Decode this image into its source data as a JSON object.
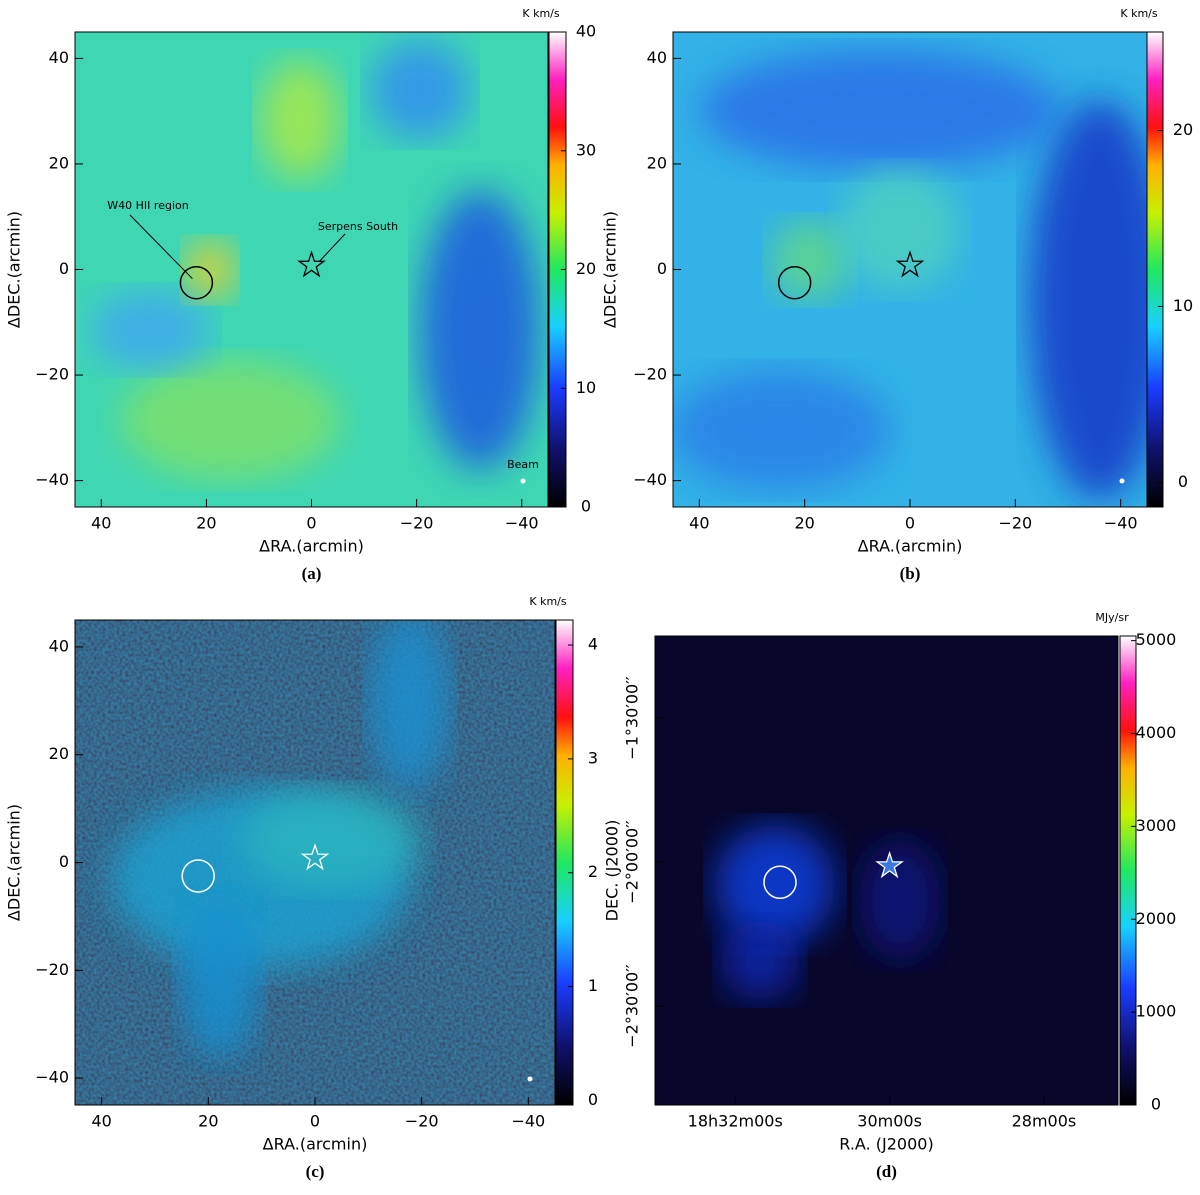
{
  "chart_data": [
    {
      "type": "image",
      "label": "(a)",
      "xlabel": "ΔRA.(arcmin)",
      "ylabel": "ΔDEC.(arcmin)",
      "xlim": [
        45,
        -45
      ],
      "ylim": [
        -45,
        45
      ],
      "xticks": [
        40,
        20,
        0,
        {
          "value": -20,
          "label": "−20"
        },
        {
          "value": -40,
          "label": "−40"
        }
      ],
      "yticks": [
        {
          "value": -40,
          "label": "−40"
        },
        {
          "value": -20,
          "label": "−20"
        },
        0,
        20,
        40
      ],
      "colorbar": {
        "unit": "K km/s",
        "lim": [
          0,
          40
        ],
        "ticks": [
          0,
          10,
          20,
          30,
          40
        ]
      },
      "circle": {
        "x": 21.9,
        "y": -2.5
      },
      "star": {
        "x": 0,
        "y": 0.8
      },
      "annotations": [
        "W40 HII region",
        "Serpens South",
        "Beam"
      ]
    },
    {
      "type": "image",
      "label": "(b)",
      "xlabel": "ΔRA.(arcmin)",
      "ylabel": "ΔDEC.(arcmin)",
      "xlim": [
        45,
        -45
      ],
      "ylim": [
        -45,
        45
      ],
      "xticks": [
        40,
        20,
        0,
        {
          "value": -20,
          "label": "−20"
        },
        {
          "value": -40,
          "label": "−40"
        }
      ],
      "yticks": [
        {
          "value": -40,
          "label": "−40"
        },
        {
          "value": -20,
          "label": "−20"
        },
        0,
        20,
        40
      ],
      "colorbar": {
        "unit": "K km/s",
        "lim": [
          -1.4,
          25.6
        ],
        "ticks": [
          0,
          10,
          20
        ]
      },
      "circle": {
        "x": 21.9,
        "y": -2.5
      },
      "star": {
        "x": 0,
        "y": 0.8
      }
    },
    {
      "type": "image",
      "label": "(c)",
      "xlabel": "ΔRA.(arcmin)",
      "ylabel": "ΔDEC.(arcmin)",
      "xlim": [
        45,
        -45
      ],
      "ylim": [
        -45,
        45
      ],
      "xticks": [
        40,
        20,
        0,
        {
          "value": -20,
          "label": "−20"
        },
        {
          "value": -40,
          "label": "−40"
        }
      ],
      "yticks": [
        {
          "value": -40,
          "label": "−40"
        },
        {
          "value": -20,
          "label": "−20"
        },
        0,
        20,
        40
      ],
      "colorbar": {
        "unit": "K km/s",
        "lim": [
          -0.04,
          4.22
        ],
        "ticks": [
          0,
          1,
          2,
          3,
          4
        ]
      },
      "circle": {
        "x": 21.9,
        "y": -2.5
      },
      "star": {
        "x": 0,
        "y": 0.8
      }
    },
    {
      "type": "image",
      "label": "(d)",
      "xlabel": "R.A. (J2000)",
      "ylabel": "DEC. (J2000)",
      "xlim": [
        33.04,
        27.04
      ],
      "ylim": [
        -170.6,
        -72.9
      ],
      "xticks": [
        {
          "value": 32,
          "label": "18h32m00s"
        },
        {
          "value": 30,
          "label": "30m00s"
        },
        {
          "value": 28,
          "label": "28m00s"
        }
      ],
      "yticks": [
        {
          "value": -150,
          "label": "−2°30′00′′"
        },
        {
          "value": -120,
          "label": "−2°00′00′′"
        },
        {
          "value": -90,
          "label": "−1°30′00′′"
        }
      ],
      "colorbar": {
        "unit": "MJy/sr",
        "lim": [
          0,
          5050
        ],
        "ticks": [
          0,
          1000,
          2000,
          3000,
          4000,
          5000
        ]
      },
      "circle": {
        "x": 31.42,
        "y": -124.2
      },
      "star": {
        "x": 30,
        "y": -120.8
      }
    }
  ]
}
